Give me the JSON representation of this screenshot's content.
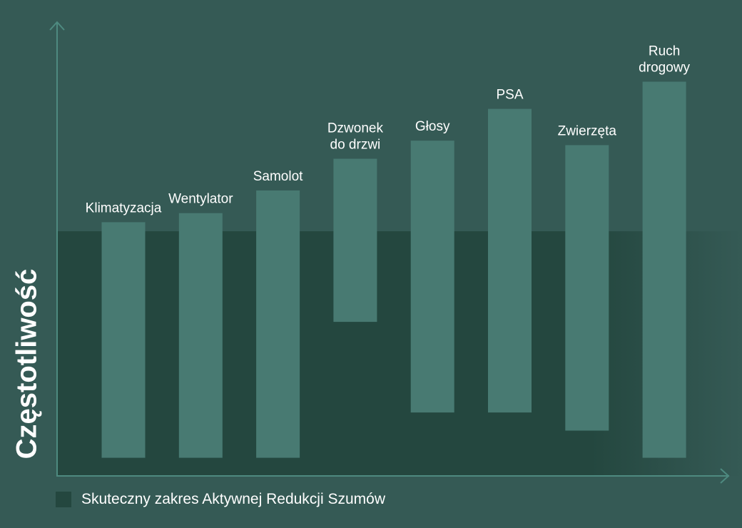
{
  "chart_data": {
    "type": "bar",
    "ylabel": "Częstotliwość",
    "xlabel": "",
    "title": "",
    "ylim": [
      0,
      100
    ],
    "grid": false,
    "categories": [
      [
        "Klimatyzacja"
      ],
      [
        "Wentylator"
      ],
      [
        "Samolot"
      ],
      [
        "Dzwonek",
        "do drzwi"
      ],
      [
        "Głosy"
      ],
      [
        "PSA"
      ],
      [
        "Zwierzęta"
      ],
      [
        "Ruch",
        "drogowy"
      ]
    ],
    "ranges": [
      [
        4,
        56
      ],
      [
        4,
        58
      ],
      [
        4,
        63
      ],
      [
        34,
        70
      ],
      [
        14,
        74
      ],
      [
        14,
        81
      ],
      [
        10,
        73
      ],
      [
        4,
        87
      ]
    ],
    "anc_range": [
      0,
      54
    ],
    "legend": {
      "label": "Skuteczny zakres Aktywnej Redukcji Szumów",
      "placement": "bottom-left"
    },
    "colors": {
      "background": "#355a55",
      "anc_band": "#24473f",
      "bar": "#487a72",
      "axis": "#4e8a80",
      "text": "#ffffff"
    }
  }
}
